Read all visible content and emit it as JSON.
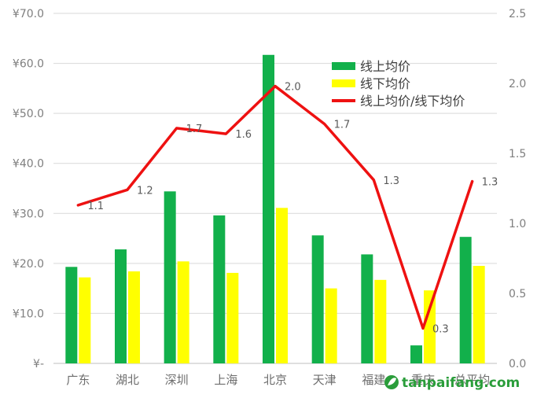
{
  "chart_data": {
    "type": "bar",
    "categories": [
      "广东",
      "湖北",
      "深圳",
      "上海",
      "北京",
      "天津",
      "福建",
      "重庆",
      "总平均"
    ],
    "series": [
      {
        "name": "线上均价",
        "type": "bar",
        "axis": "left",
        "color": "#12b04b",
        "values": [
          19.3,
          22.8,
          34.4,
          29.6,
          61.7,
          25.6,
          21.8,
          3.6,
          25.3
        ]
      },
      {
        "name": "线下均价",
        "type": "bar",
        "axis": "left",
        "color": "#ffff00",
        "values": [
          17.2,
          18.4,
          20.4,
          18.1,
          31.1,
          15.0,
          16.7,
          14.6,
          19.5
        ]
      },
      {
        "name": "线上均价/线下均价",
        "type": "line",
        "axis": "right",
        "color": "#ee1111",
        "values": [
          1.1,
          1.2,
          1.7,
          1.6,
          2.0,
          1.7,
          1.3,
          0.3,
          1.3
        ],
        "plot_values": [
          1.13,
          1.24,
          1.68,
          1.64,
          1.98,
          1.71,
          1.31,
          0.25,
          1.3
        ]
      }
    ],
    "y_left": {
      "min": 0,
      "max": 70,
      "step": 10,
      "tick_labels": [
        "¥-",
        "¥10.0",
        "¥20.0",
        "¥30.0",
        "¥40.0",
        "¥50.0",
        "¥60.0",
        "¥70.0"
      ]
    },
    "y_right": {
      "min": 0,
      "max": 2.5,
      "step": 0.5,
      "tick_labels": [
        "0.0",
        "0.5",
        "1.0",
        "1.5",
        "2.0",
        "2.5"
      ]
    },
    "grid": true,
    "legend": "top-right"
  },
  "watermark": {
    "text": "tanpaifang.com",
    "icon": "leaf-logo-icon"
  }
}
